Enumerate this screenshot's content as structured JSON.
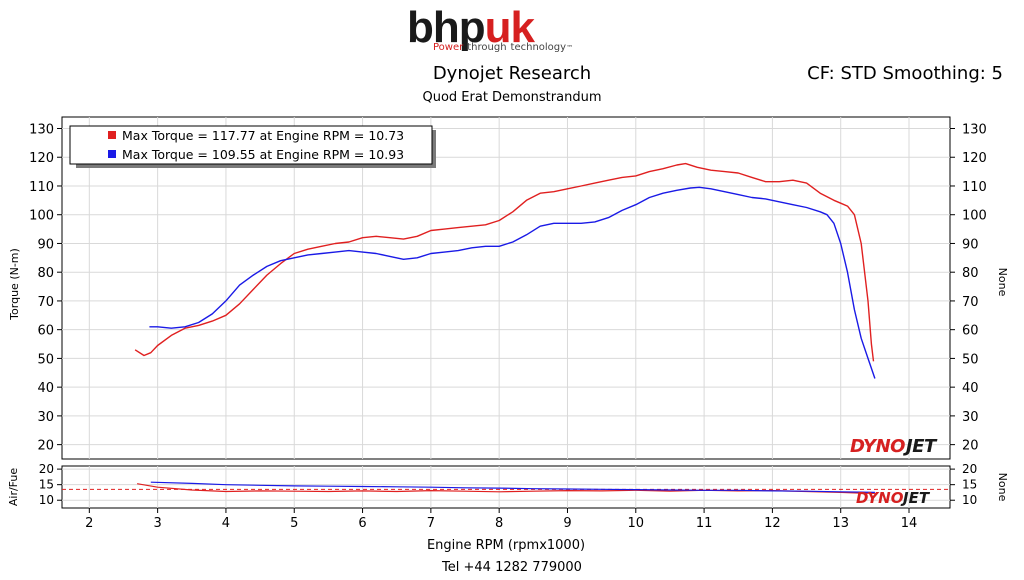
{
  "logo": {
    "brand_main": "bhp",
    "brand_accent": "uk",
    "tagline_1": "Power",
    "tagline_2": "through",
    "tagline_3": "technology",
    "tm": "™"
  },
  "header": {
    "title": "Dynojet Research",
    "subtitle": "Quod Erat Demonstrandum",
    "cf_info": "CF: STD Smoothing: 5"
  },
  "footer": {
    "phone": "Tel +44 1282 779000"
  },
  "watermark": {
    "text_1": "DYNO",
    "text_2": "JET"
  },
  "colors": {
    "run1": "#e02020",
    "run2": "#1a1ae6",
    "grid": "#d9d9d9"
  },
  "chart_data": [
    {
      "type": "line",
      "ylabel": "Torque (N-m)",
      "ylabel_right": "None",
      "xlabel": "Engine RPM (rpmx1000)",
      "xlim": [
        1.6,
        14.6
      ],
      "ylim": [
        15,
        134
      ],
      "grid": true,
      "legend_position": "top-left",
      "x_ticks": [
        2,
        3,
        4,
        5,
        6,
        7,
        8,
        9,
        10,
        11,
        12,
        13,
        14
      ],
      "y_ticks": [
        20,
        30,
        40,
        50,
        60,
        70,
        80,
        90,
        100,
        110,
        120,
        130
      ],
      "legend": [
        "Max Torque = 117.77 at Engine RPM = 10.73",
        "Max Torque = 109.55 at Engine RPM = 10.93"
      ],
      "series": [
        {
          "color": "#e02020",
          "x": [
            2.67,
            2.8,
            2.9,
            3.0,
            3.2,
            3.4,
            3.6,
            3.8,
            4.0,
            4.2,
            4.4,
            4.6,
            4.8,
            5.0,
            5.2,
            5.4,
            5.6,
            5.8,
            6.0,
            6.2,
            6.4,
            6.6,
            6.8,
            7.0,
            7.2,
            7.4,
            7.6,
            7.8,
            8.0,
            8.2,
            8.4,
            8.6,
            8.8,
            9.0,
            9.2,
            9.4,
            9.6,
            9.8,
            10.0,
            10.2,
            10.4,
            10.6,
            10.73,
            10.9,
            11.1,
            11.3,
            11.5,
            11.7,
            11.9,
            12.1,
            12.3,
            12.5,
            12.7,
            12.9,
            13.0,
            13.1,
            13.2,
            13.3,
            13.4,
            13.45,
            13.48
          ],
          "y": [
            53,
            51,
            52,
            54.5,
            58,
            60.5,
            61.5,
            63,
            65,
            69,
            74,
            79,
            83,
            86.5,
            88,
            89,
            90,
            90.5,
            92,
            92.5,
            92,
            91.5,
            92.5,
            94.5,
            95,
            95.5,
            96,
            96.5,
            98,
            101,
            105,
            107.5,
            108,
            109,
            110,
            111,
            112,
            113,
            113.5,
            115,
            116,
            117.3,
            117.77,
            116.5,
            115.5,
            115,
            114.5,
            113,
            111.5,
            111.5,
            112,
            111,
            107.5,
            105,
            104,
            103,
            100,
            90,
            70,
            55,
            49
          ]
        },
        {
          "color": "#1a1ae6",
          "x": [
            2.88,
            3.0,
            3.2,
            3.4,
            3.6,
            3.8,
            4.0,
            4.2,
            4.4,
            4.6,
            4.8,
            5.0,
            5.2,
            5.4,
            5.6,
            5.8,
            6.0,
            6.2,
            6.4,
            6.6,
            6.8,
            7.0,
            7.2,
            7.4,
            7.6,
            7.8,
            8.0,
            8.2,
            8.4,
            8.6,
            8.8,
            9.0,
            9.2,
            9.4,
            9.6,
            9.8,
            10.0,
            10.2,
            10.4,
            10.6,
            10.8,
            10.93,
            11.1,
            11.3,
            11.5,
            11.7,
            11.9,
            12.1,
            12.3,
            12.5,
            12.7,
            12.8,
            12.9,
            13.0,
            13.1,
            13.2,
            13.3,
            13.4,
            13.5
          ],
          "y": [
            61,
            61,
            60.5,
            61,
            62.5,
            65.5,
            70,
            75.5,
            79,
            82,
            84,
            85,
            86,
            86.5,
            87,
            87.5,
            87,
            86.5,
            85.5,
            84.5,
            85,
            86.5,
            87,
            87.5,
            88.5,
            89,
            89,
            90.5,
            93,
            96,
            97,
            97,
            97,
            97.5,
            99,
            101.5,
            103.5,
            106,
            107.5,
            108.5,
            109.3,
            109.55,
            109,
            108,
            107,
            106,
            105.5,
            104.5,
            103.5,
            102.5,
            101,
            100,
            97,
            90,
            80,
            67,
            57,
            50,
            43
          ]
        }
      ]
    },
    {
      "type": "line",
      "ylabel": "Air/Fue",
      "ylabel_right": "None",
      "xlim": [
        1.6,
        14.6
      ],
      "ylim": [
        7.5,
        21
      ],
      "grid": true,
      "y_ticks": [
        10,
        15,
        20
      ],
      "reference_line": 13.5,
      "series": [
        {
          "color": "#e02020",
          "x": [
            2.7,
            3.0,
            3.5,
            4.0,
            4.5,
            5.0,
            5.5,
            6.0,
            6.5,
            7.0,
            7.5,
            8.0,
            8.5,
            9.0,
            9.5,
            10.0,
            10.5,
            11.0,
            11.5,
            12.0,
            12.5,
            13.0,
            13.3,
            13.5
          ],
          "y": [
            15.3,
            14.2,
            13.3,
            12.8,
            13.0,
            12.9,
            12.8,
            13.0,
            12.8,
            13.1,
            12.9,
            12.7,
            12.9,
            13.1,
            13.0,
            13.2,
            12.9,
            13.2,
            13.0,
            13.1,
            12.8,
            12.5,
            12.3,
            12.2
          ]
        },
        {
          "color": "#1a1ae6",
          "x": [
            2.9,
            3.5,
            4.0,
            4.5,
            5.0,
            5.5,
            6.0,
            6.5,
            7.0,
            7.5,
            8.0,
            8.5,
            9.0,
            9.5,
            10.0,
            10.5,
            11.0,
            11.5,
            12.0,
            12.5,
            13.0,
            13.3,
            13.5
          ],
          "y": [
            15.8,
            15.4,
            15.0,
            14.8,
            14.6,
            14.5,
            14.4,
            14.3,
            14.2,
            14.0,
            13.9,
            13.7,
            13.6,
            13.5,
            13.4,
            13.3,
            13.2,
            13.2,
            13.0,
            12.9,
            12.7,
            12.6,
            12.5
          ]
        }
      ]
    }
  ]
}
